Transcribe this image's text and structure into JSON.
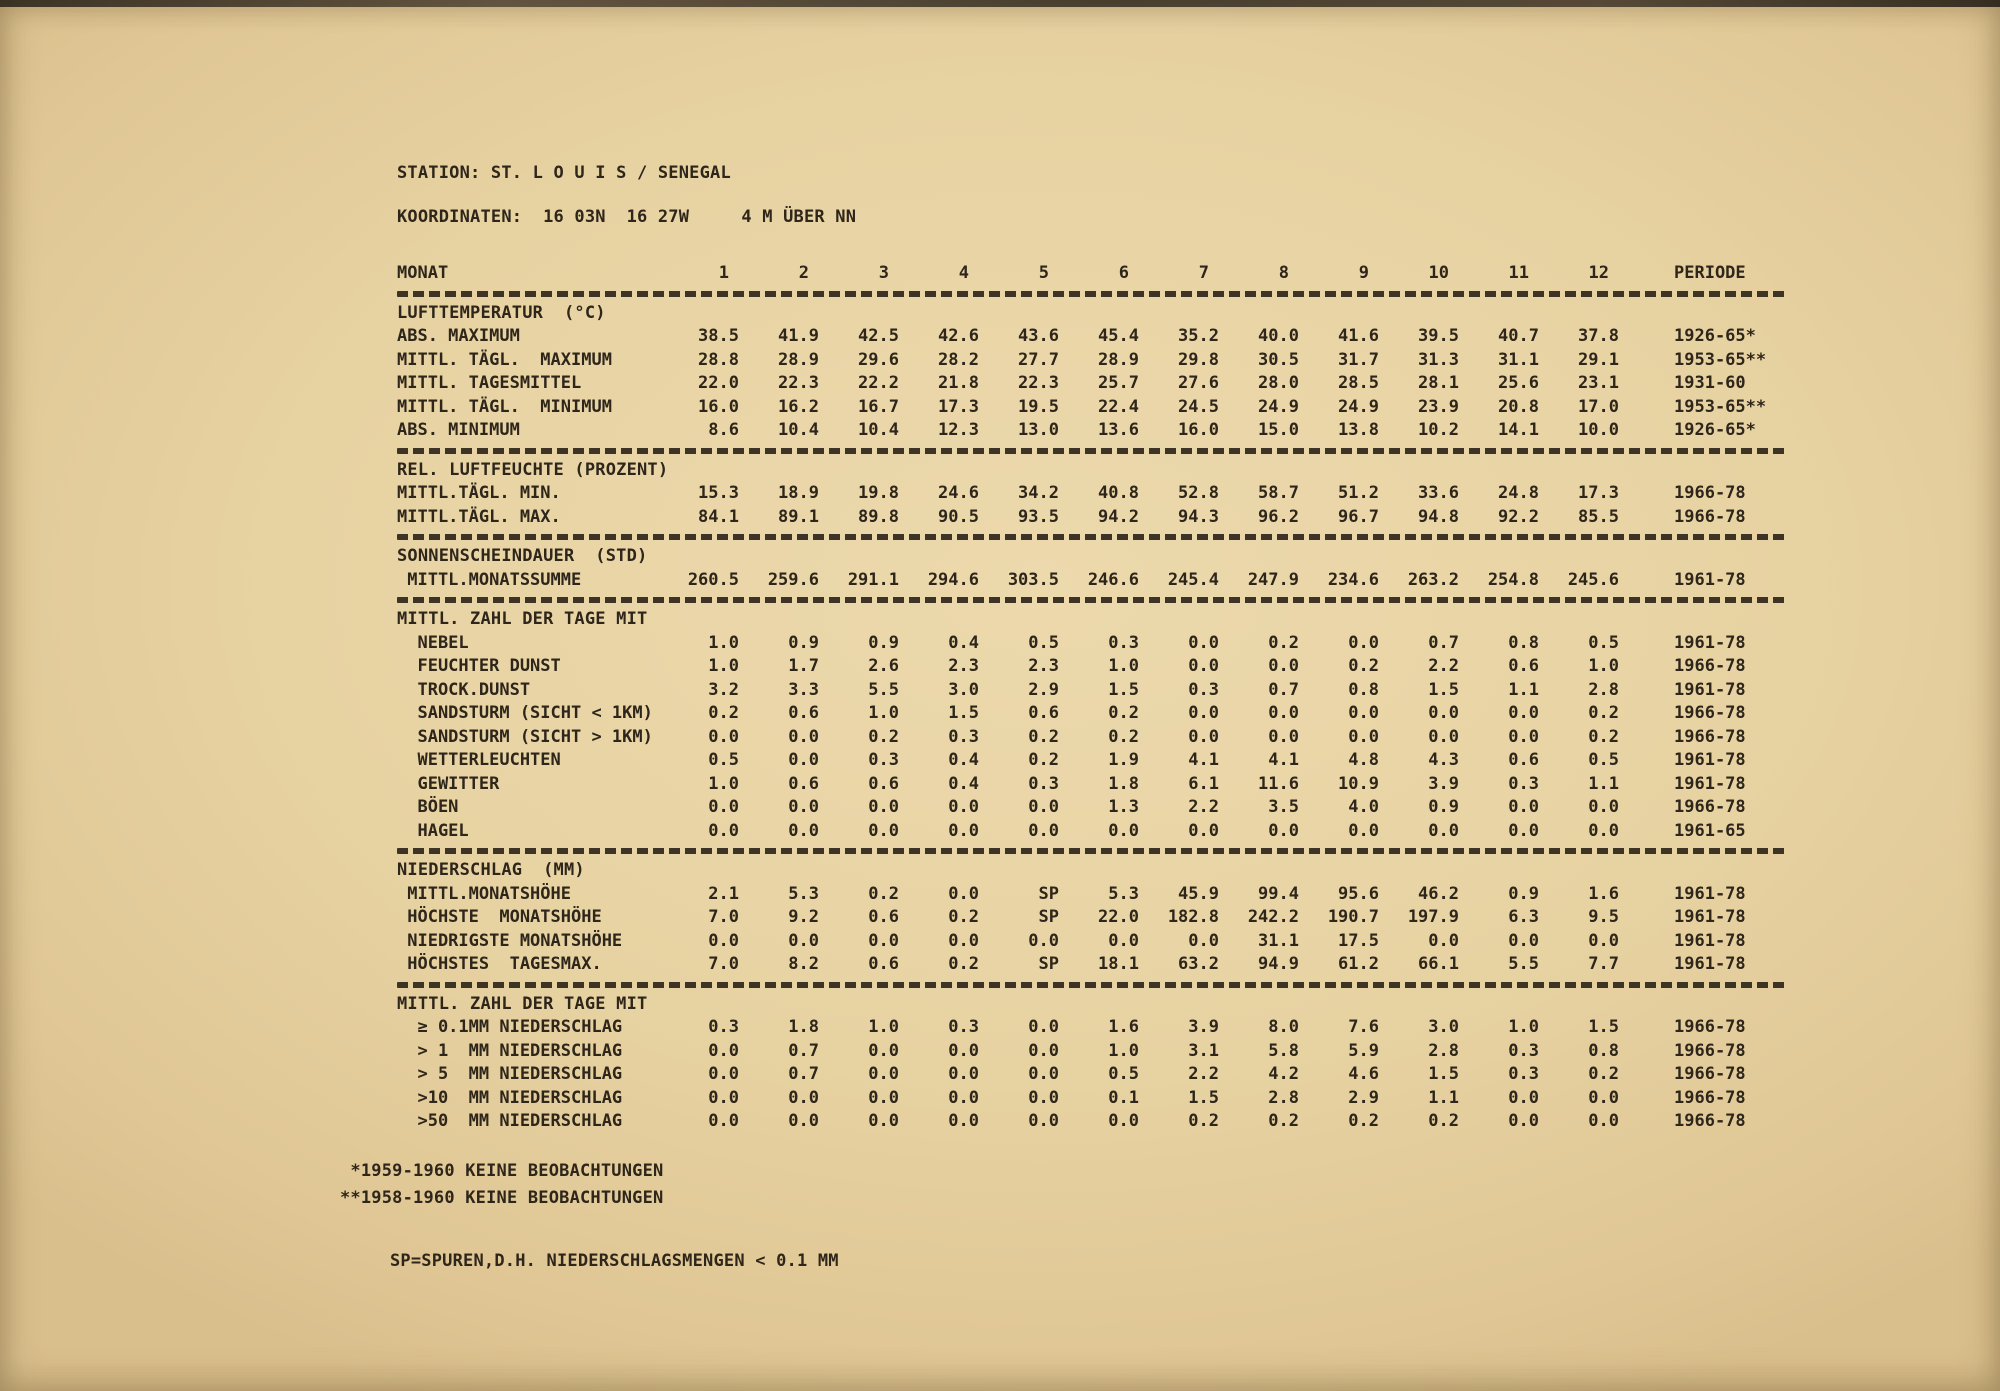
{
  "header": {
    "station": "STATION: ST. L O U I S / SENEGAL",
    "koordinaten": "KOORDINATEN:  16 03N  16 27W     4 M ÜBER NN"
  },
  "table": {
    "monat_label": "MONAT",
    "months": [
      "1",
      "2",
      "3",
      "4",
      "5",
      "6",
      "7",
      "8",
      "9",
      "10",
      "11",
      "12"
    ],
    "periode_label": "PERIODE",
    "sections": [
      {
        "title": "LUFTTEMPERATUR  (°C)",
        "rows": [
          {
            "label": "ABS. MAXIMUM",
            "values": [
              "38.5",
              "41.9",
              "42.5",
              "42.6",
              "43.6",
              "45.4",
              "35.2",
              "40.0",
              "41.6",
              "39.5",
              "40.7",
              "37.8"
            ],
            "periode": "1926-65*"
          },
          {
            "label": "MITTL. TÄGL.  MAXIMUM",
            "values": [
              "28.8",
              "28.9",
              "29.6",
              "28.2",
              "27.7",
              "28.9",
              "29.8",
              "30.5",
              "31.7",
              "31.3",
              "31.1",
              "29.1"
            ],
            "periode": "1953-65**"
          },
          {
            "label": "MITTL. TAGESMITTEL",
            "values": [
              "22.0",
              "22.3",
              "22.2",
              "21.8",
              "22.3",
              "25.7",
              "27.6",
              "28.0",
              "28.5",
              "28.1",
              "25.6",
              "23.1"
            ],
            "periode": "1931-60"
          },
          {
            "label": "MITTL. TÄGL.  MINIMUM",
            "values": [
              "16.0",
              "16.2",
              "16.7",
              "17.3",
              "19.5",
              "22.4",
              "24.5",
              "24.9",
              "24.9",
              "23.9",
              "20.8",
              "17.0"
            ],
            "periode": "1953-65**"
          },
          {
            "label": "ABS. MINIMUM",
            "values": [
              "8.6",
              "10.4",
              "10.4",
              "12.3",
              "13.0",
              "13.6",
              "16.0",
              "15.0",
              "13.8",
              "10.2",
              "14.1",
              "10.0"
            ],
            "periode": "1926-65*"
          }
        ]
      },
      {
        "title": "REL. LUFTFEUCHTE (PROZENT)",
        "rows": [
          {
            "label": "MITTL.TÄGL. MIN.",
            "values": [
              "15.3",
              "18.9",
              "19.8",
              "24.6",
              "34.2",
              "40.8",
              "52.8",
              "58.7",
              "51.2",
              "33.6",
              "24.8",
              "17.3"
            ],
            "periode": "1966-78"
          },
          {
            "label": "MITTL.TÄGL. MAX.",
            "values": [
              "84.1",
              "89.1",
              "89.8",
              "90.5",
              "93.5",
              "94.2",
              "94.3",
              "96.2",
              "96.7",
              "94.8",
              "92.2",
              "85.5"
            ],
            "periode": "1966-78"
          }
        ]
      },
      {
        "title": "SONNENSCHEINDAUER  (STD)",
        "rows": [
          {
            "label": " MITTL.MONATSSUMME",
            "values": [
              "260.5",
              "259.6",
              "291.1",
              "294.6",
              "303.5",
              "246.6",
              "245.4",
              "247.9",
              "234.6",
              "263.2",
              "254.8",
              "245.6"
            ],
            "periode": "1961-78"
          }
        ]
      },
      {
        "title": "MITTL. ZAHL DER TAGE MIT",
        "rows": [
          {
            "label": "  NEBEL",
            "values": [
              "1.0",
              "0.9",
              "0.9",
              "0.4",
              "0.5",
              "0.3",
              "0.0",
              "0.2",
              "0.0",
              "0.7",
              "0.8",
              "0.5"
            ],
            "periode": "1961-78"
          },
          {
            "label": "  FEUCHTER DUNST",
            "values": [
              "1.0",
              "1.7",
              "2.6",
              "2.3",
              "2.3",
              "1.0",
              "0.0",
              "0.0",
              "0.2",
              "2.2",
              "0.6",
              "1.0"
            ],
            "periode": "1966-78"
          },
          {
            "label": "  TROCK.DUNST",
            "values": [
              "3.2",
              "3.3",
              "5.5",
              "3.0",
              "2.9",
              "1.5",
              "0.3",
              "0.7",
              "0.8",
              "1.5",
              "1.1",
              "2.8"
            ],
            "periode": "1961-78"
          },
          {
            "label": "  SANDSTURM (SICHT < 1KM)",
            "values": [
              "0.2",
              "0.6",
              "1.0",
              "1.5",
              "0.6",
              "0.2",
              "0.0",
              "0.0",
              "0.0",
              "0.0",
              "0.0",
              "0.2"
            ],
            "periode": "1966-78"
          },
          {
            "label": "  SANDSTURM (SICHT > 1KM)",
            "values": [
              "0.0",
              "0.0",
              "0.2",
              "0.3",
              "0.2",
              "0.2",
              "0.0",
              "0.0",
              "0.0",
              "0.0",
              "0.0",
              "0.2"
            ],
            "periode": "1966-78"
          },
          {
            "label": "  WETTERLEUCHTEN",
            "values": [
              "0.5",
              "0.0",
              "0.3",
              "0.4",
              "0.2",
              "1.9",
              "4.1",
              "4.1",
              "4.8",
              "4.3",
              "0.6",
              "0.5"
            ],
            "periode": "1961-78"
          },
          {
            "label": "  GEWITTER",
            "values": [
              "1.0",
              "0.6",
              "0.6",
              "0.4",
              "0.3",
              "1.8",
              "6.1",
              "11.6",
              "10.9",
              "3.9",
              "0.3",
              "1.1"
            ],
            "periode": "1961-78"
          },
          {
            "label": "  BÖEN",
            "values": [
              "0.0",
              "0.0",
              "0.0",
              "0.0",
              "0.0",
              "1.3",
              "2.2",
              "3.5",
              "4.0",
              "0.9",
              "0.0",
              "0.0"
            ],
            "periode": "1966-78"
          },
          {
            "label": "  HAGEL",
            "values": [
              "0.0",
              "0.0",
              "0.0",
              "0.0",
              "0.0",
              "0.0",
              "0.0",
              "0.0",
              "0.0",
              "0.0",
              "0.0",
              "0.0"
            ],
            "periode": "1961-65"
          }
        ]
      },
      {
        "title": "NIEDERSCHLAG  (MM)",
        "rows": [
          {
            "label": " MITTL.MONATSHÖHE",
            "values": [
              "2.1",
              "5.3",
              "0.2",
              "0.0",
              "SP",
              "5.3",
              "45.9",
              "99.4",
              "95.6",
              "46.2",
              "0.9",
              "1.6"
            ],
            "periode": "1961-78"
          },
          {
            "label": " HÖCHSTE  MONATSHÖHE",
            "values": [
              "7.0",
              "9.2",
              "0.6",
              "0.2",
              "SP",
              "22.0",
              "182.8",
              "242.2",
              "190.7",
              "197.9",
              "6.3",
              "9.5"
            ],
            "periode": "1961-78"
          },
          {
            "label": " NIEDRIGSTE MONATSHÖHE",
            "values": [
              "0.0",
              "0.0",
              "0.0",
              "0.0",
              "0.0",
              "0.0",
              "0.0",
              "31.1",
              "17.5",
              "0.0",
              "0.0",
              "0.0"
            ],
            "periode": "1961-78"
          },
          {
            "label": " HÖCHSTES  TAGESMAX.",
            "values": [
              "7.0",
              "8.2",
              "0.6",
              "0.2",
              "SP",
              "18.1",
              "63.2",
              "94.9",
              "61.2",
              "66.1",
              "5.5",
              "7.7"
            ],
            "periode": "1961-78"
          }
        ]
      },
      {
        "title": "MITTL. ZAHL DER TAGE MIT",
        "rows": [
          {
            "label": "  ≥ 0.1MM NIEDERSCHLAG",
            "values": [
              "0.3",
              "1.8",
              "1.0",
              "0.3",
              "0.0",
              "1.6",
              "3.9",
              "8.0",
              "7.6",
              "3.0",
              "1.0",
              "1.5"
            ],
            "periode": "1966-78"
          },
          {
            "label": "  > 1  MM NIEDERSCHLAG",
            "values": [
              "0.0",
              "0.7",
              "0.0",
              "0.0",
              "0.0",
              "1.0",
              "3.1",
              "5.8",
              "5.9",
              "2.8",
              "0.3",
              "0.8"
            ],
            "periode": "1966-78"
          },
          {
            "label": "  > 5  MM NIEDERSCHLAG",
            "values": [
              "0.0",
              "0.7",
              "0.0",
              "0.0",
              "0.0",
              "0.5",
              "2.2",
              "4.2",
              "4.6",
              "1.5",
              "0.3",
              "0.2"
            ],
            "periode": "1966-78"
          },
          {
            "label": "  >10  MM NIEDERSCHLAG",
            "values": [
              "0.0",
              "0.0",
              "0.0",
              "0.0",
              "0.0",
              "0.1",
              "1.5",
              "2.8",
              "2.9",
              "1.1",
              "0.0",
              "0.0"
            ],
            "periode": "1966-78"
          },
          {
            "label": "  >50  MM NIEDERSCHLAG",
            "values": [
              "0.0",
              "0.0",
              "0.0",
              "0.0",
              "0.0",
              "0.0",
              "0.2",
              "0.2",
              "0.2",
              "0.2",
              "0.0",
              "0.0"
            ],
            "periode": "1966-78"
          }
        ]
      }
    ]
  },
  "footnotes": {
    "line1": " *1959-1960 KEINE BEOBACHTUNGEN",
    "line2": "**1958-1960 KEINE BEOBACHTUNGEN",
    "sp_note": "SP=SPUREN,D.H. NIEDERSCHLAGSMENGEN < 0.1 MM"
  }
}
